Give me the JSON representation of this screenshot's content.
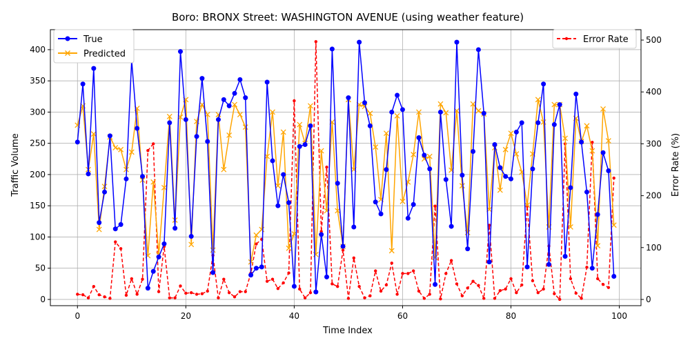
{
  "chart_data": {
    "type": "line",
    "title": "Boro: BRONX Street: WASHINGTON AVENUE (using weather feature)",
    "xlabel": "Time Index",
    "ylabel": "Traffic Volume",
    "y2label": "Error Rate (%)",
    "xlim": [
      -5,
      104
    ],
    "ylim": [
      -10,
      432
    ],
    "y2lim": [
      -12,
      520
    ],
    "xticks": [
      0,
      20,
      40,
      60,
      80,
      100
    ],
    "yticks": [
      0,
      50,
      100,
      150,
      200,
      250,
      300,
      350,
      400
    ],
    "y2ticks": [
      0,
      100,
      200,
      300,
      400,
      500
    ],
    "grid": true,
    "legend_left": "top-left",
    "legend_right": "top-right",
    "colors": {
      "true": "#0000ff",
      "predicted": "#ffa500",
      "error": "#ff0000"
    },
    "series": [
      {
        "name": "True",
        "axis": "left",
        "values": [
          252,
          345,
          201,
          370,
          123,
          172,
          262,
          113,
          120,
          193,
          383,
          274,
          197,
          18,
          45,
          68,
          89,
          283,
          114,
          397,
          288,
          101,
          261,
          354,
          253,
          43,
          288,
          320,
          310,
          330,
          352,
          323,
          39,
          50,
          52,
          348,
          222,
          150,
          200,
          155,
          21,
          245,
          248,
          278,
          12,
          104,
          36,
          401,
          186,
          85,
          323,
          116,
          412,
          315,
          278,
          156,
          137,
          208,
          300,
          327,
          304,
          130,
          152,
          259,
          231,
          209,
          24,
          300,
          192,
          117,
          412,
          199,
          81,
          237,
          400,
          298,
          60,
          248,
          211,
          197,
          193,
          268,
          283,
          52,
          209,
          283,
          345,
          56,
          280,
          312,
          69,
          179,
          329,
          252,
          172,
          50,
          136,
          235,
          206,
          37
        ]
      },
      {
        "name": "Predicted",
        "axis": "left",
        "values": [
          279,
          310,
          208,
          265,
          112,
          181,
          260,
          243,
          240,
          208,
          236,
          306,
          191,
          70,
          188,
          72,
          179,
          293,
          127,
          292,
          320,
          88,
          285,
          312,
          296,
          79,
          296,
          208,
          263,
          312,
          296,
          276,
          60,
          103,
          112,
          229,
          300,
          182,
          268,
          82,
          105,
          280,
          250,
          310,
          72,
          238,
          142,
          284,
          142,
          85,
          320,
          208,
          312,
          309,
          298,
          244,
          160,
          266,
          78,
          294,
          157,
          188,
          232,
          300,
          225,
          229,
          67,
          313,
          299,
          207,
          302,
          182,
          107,
          313,
          302,
          297,
          144,
          243,
          175,
          240,
          266,
          233,
          204,
          151,
          233,
          320,
          284,
          116,
          312,
          312,
          258,
          116,
          290,
          253,
          278,
          238,
          86,
          305,
          254,
          119
        ]
      },
      {
        "name": "Error Rate",
        "axis": "right",
        "values": [
          10,
          9,
          3,
          25,
          9,
          5,
          2,
          111,
          98,
          8,
          40,
          10,
          39,
          287,
          300,
          15,
          102,
          3,
          3,
          26,
          12,
          13,
          10,
          11,
          16,
          85,
          3,
          39,
          13,
          5,
          15,
          15,
          51,
          107,
          116,
          35,
          39,
          21,
          32,
          51,
          383,
          20,
          3,
          13,
          497,
          131,
          255,
          30,
          25,
          95,
          2,
          80,
          25,
          3,
          7,
          55,
          16,
          28,
          70,
          10,
          50,
          50,
          55,
          16,
          2,
          10,
          180,
          1,
          50,
          75,
          30,
          7,
          22,
          35,
          27,
          2,
          143,
          2,
          17,
          20,
          40,
          13,
          28,
          180,
          36,
          13,
          20,
          103,
          11,
          0,
          300,
          40,
          12,
          2,
          62,
          303,
          40,
          29,
          23,
          234
        ]
      }
    ]
  }
}
